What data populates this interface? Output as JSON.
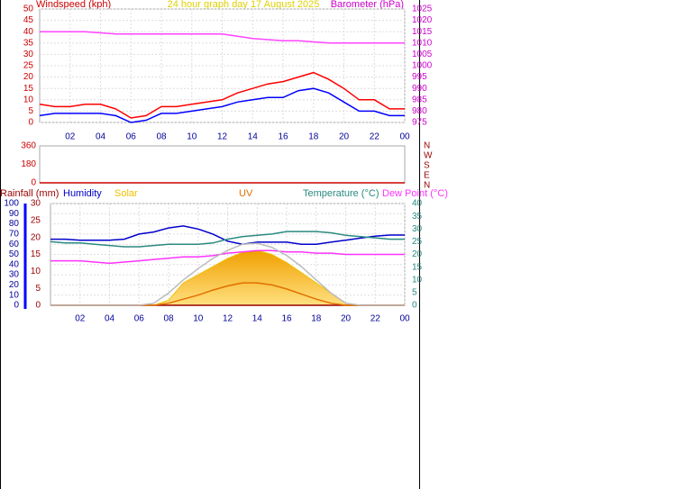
{
  "chart_data": [
    {
      "type": "line",
      "title": "24 hour graph day   17 August 2025",
      "y_label": "Windspeed (kph)",
      "y2_label": "Barometer (hPa)",
      "xlim": [
        0,
        24
      ],
      "xticks": [
        {
          "value": 2,
          "label": "02"
        },
        {
          "value": 4,
          "label": "04"
        },
        {
          "value": 6,
          "label": "06"
        },
        {
          "value": 8,
          "label": "08"
        },
        10,
        12,
        14,
        16,
        18,
        20,
        22,
        {
          "value": 24,
          "label": "00"
        }
      ],
      "ylim": [
        0,
        50
      ],
      "yticks": [
        0,
        5,
        10,
        15,
        20,
        25,
        30,
        35,
        40,
        45,
        50
      ],
      "y2lim": [
        975,
        1025
      ],
      "y2ticks": [
        975,
        980,
        985,
        990,
        995,
        1000,
        1005,
        1010,
        1015,
        1020,
        1025
      ],
      "grid": true,
      "x": [
        0,
        1,
        2,
        3,
        4,
        5,
        6,
        7,
        8,
        9,
        10,
        11,
        12,
        13,
        14,
        15,
        16,
        17,
        18,
        19,
        20,
        21,
        22,
        23,
        24
      ],
      "series": [
        {
          "color": "#ff0000",
          "values": [
            8,
            7,
            7,
            8,
            8,
            6,
            2,
            3,
            7,
            7,
            8,
            9,
            10,
            13,
            15,
            17,
            18,
            20,
            22,
            19,
            15,
            10,
            10,
            6,
            6
          ]
        },
        {
          "color": "#0000ff",
          "values": [
            3,
            4,
            4,
            4,
            4,
            3,
            0,
            1,
            4,
            4,
            5,
            6,
            7,
            9,
            10,
            11,
            11,
            14,
            15,
            13,
            9,
            5,
            5,
            3,
            3
          ]
        },
        {
          "color": "#ff44ff",
          "axis": "y2",
          "values": [
            1015,
            1015,
            1015,
            1015,
            1014.5,
            1014,
            1014,
            1014,
            1014,
            1014,
            1014,
            1014,
            1014,
            1013,
            1012,
            1011.5,
            1011,
            1011,
            1010.5,
            1010,
            1010,
            1010,
            1010,
            1010,
            1010
          ]
        }
      ]
    },
    {
      "type": "line",
      "xlim": [
        0,
        24
      ],
      "ylim": [
        0,
        360
      ],
      "yticks": [
        0,
        180,
        360
      ],
      "compass_labels": [
        "N",
        "W",
        "S",
        "E",
        "N"
      ],
      "x": [
        0,
        24
      ],
      "series": [
        {
          "color": "#cc0000",
          "values": [
            0,
            0
          ]
        }
      ]
    },
    {
      "type": "line",
      "xlim": [
        0,
        24
      ],
      "xticks": [
        {
          "value": 2,
          "label": "02"
        },
        {
          "value": 4,
          "label": "04"
        },
        {
          "value": 6,
          "label": "06"
        },
        {
          "value": 8,
          "label": "08"
        },
        10,
        12,
        14,
        16,
        18,
        20,
        22,
        {
          "value": 24,
          "label": "00"
        }
      ],
      "ylim": [
        0,
        100
      ],
      "yticks": [
        0,
        10,
        20,
        30,
        40,
        50,
        60,
        70,
        80,
        90,
        100
      ],
      "y3lim": [
        0,
        30
      ],
      "y3ticks": [
        0,
        5,
        10,
        15,
        20,
        25,
        30
      ],
      "y2lim": [
        0,
        40
      ],
      "y2ticks": [
        0,
        5,
        10,
        15,
        20,
        25,
        30,
        35,
        40
      ],
      "grid": true,
      "x": [
        0,
        1,
        2,
        3,
        4,
        5,
        6,
        7,
        8,
        9,
        10,
        11,
        12,
        13,
        14,
        15,
        16,
        17,
        18,
        19,
        20,
        21,
        22,
        23,
        24
      ],
      "series": [
        {
          "name": "Rainfall (mm)",
          "color": "#990000",
          "axis": "y3",
          "values": [
            0,
            0,
            0,
            0,
            0,
            0,
            0,
            0,
            0,
            0,
            0,
            0,
            0,
            0,
            0,
            0,
            0,
            0,
            0,
            0,
            0,
            0,
            0,
            0,
            0
          ]
        },
        {
          "name": "Humidity",
          "color": "#0000cc",
          "values": [
            65,
            65,
            64,
            64,
            64,
            65,
            70,
            72,
            76,
            78,
            75,
            70,
            63,
            60,
            62,
            62,
            62,
            60,
            60,
            62,
            64,
            66,
            68,
            69,
            69
          ]
        },
        {
          "name": "Solar",
          "color": "#f0c000",
          "fill": true,
          "values": [
            0,
            0,
            0,
            0,
            0,
            0,
            0,
            0,
            5,
            22,
            30,
            38,
            46,
            52,
            54,
            50,
            42,
            32,
            22,
            12,
            2,
            0,
            0,
            0,
            0
          ]
        },
        {
          "name": "UV",
          "color": "#e07000",
          "values": [
            0,
            0,
            0,
            0,
            0,
            0,
            0,
            0,
            2,
            6,
            10,
            15,
            19,
            22,
            22,
            20,
            16,
            11,
            6,
            2,
            0,
            0,
            0,
            0,
            0
          ]
        },
        {
          "name": "Temperature (°C)",
          "color": "#2a8a80",
          "axis": "y2",
          "values": [
            25,
            24.5,
            24.5,
            24,
            23.5,
            23,
            23,
            23.5,
            24,
            24,
            24,
            24.5,
            26,
            27,
            27.5,
            28,
            29,
            29,
            29,
            28.5,
            27.5,
            27,
            26.5,
            26,
            26
          ]
        },
        {
          "name": "Dew Point (°C)",
          "color": "#ff33ff",
          "axis": "y2",
          "values": [
            17.5,
            17.5,
            17.5,
            17,
            16.5,
            17,
            17.5,
            18,
            18.5,
            19,
            19,
            19.5,
            20.5,
            21,
            21.5,
            21.5,
            21,
            21,
            20.5,
            20.5,
            20,
            20,
            20,
            20,
            20
          ]
        },
        {
          "color": "#bbbbbb",
          "values": [
            0,
            0,
            0,
            0,
            0,
            0,
            0,
            2,
            12,
            25,
            36,
            46,
            54,
            60,
            61,
            57,
            49,
            38,
            25,
            12,
            2,
            0,
            0,
            0,
            0
          ]
        }
      ]
    }
  ]
}
